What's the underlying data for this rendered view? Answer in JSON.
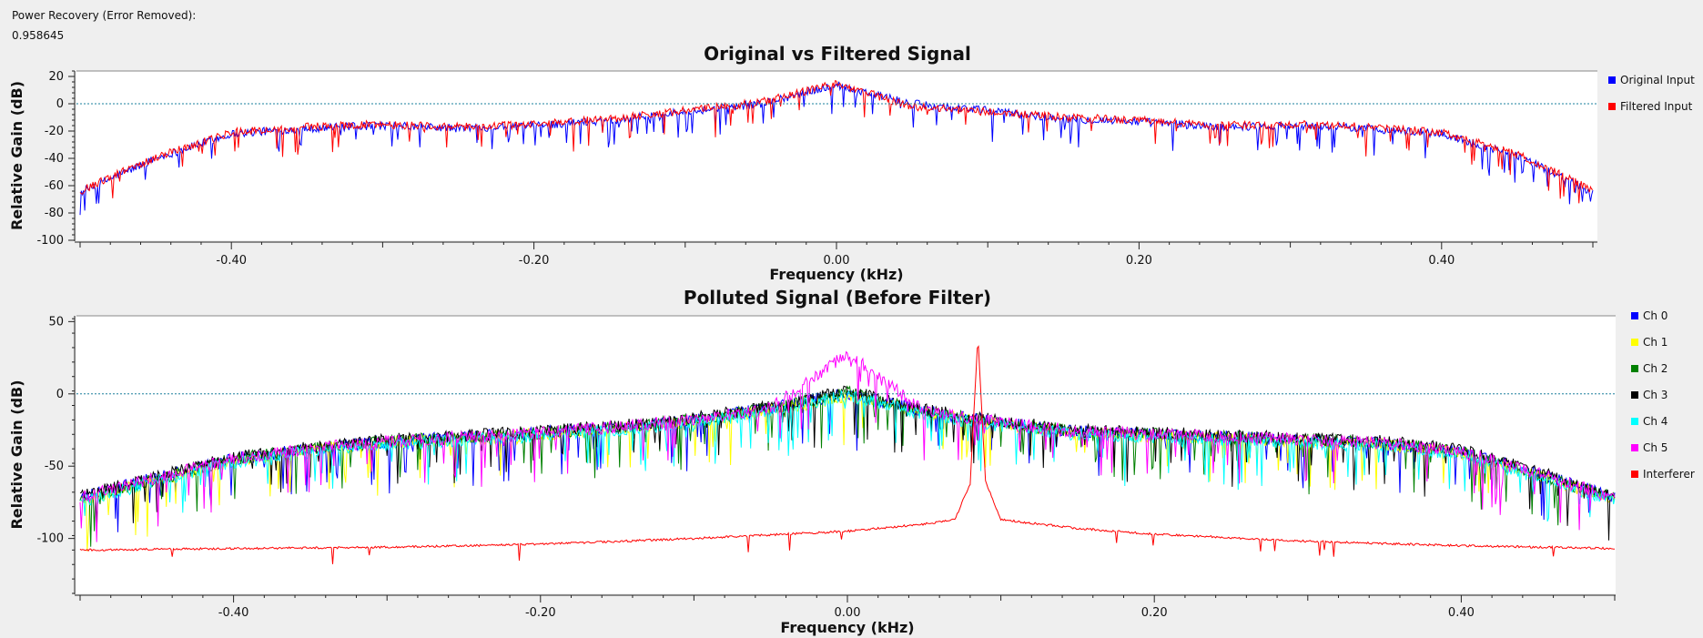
{
  "readout": {
    "label": "Power Recovery (Error Removed):",
    "value": "0.958645"
  },
  "chart_data": [
    {
      "type": "line",
      "title": "Original vs Filtered Signal",
      "xlabel": "Frequency (kHz)",
      "ylabel": "Relative Gain (dB)",
      "xlim": [
        -0.5,
        0.5
      ],
      "ylim": [
        -100,
        24
      ],
      "x_ticks": [
        -0.4,
        -0.2,
        0.0,
        0.2,
        0.4
      ],
      "x_tick_labels": [
        "-0.40",
        "-0.20",
        "0.00",
        "0.20",
        "0.40"
      ],
      "y_ticks": [
        20,
        0,
        -20,
        -40,
        -60,
        -80,
        -100
      ],
      "y_tick_labels": [
        "20",
        "0",
        "-20",
        "-40",
        "-60",
        "-80",
        "-100"
      ],
      "reference_line": 0,
      "legend": [
        {
          "name": "Original Input",
          "color": "#0000ff"
        },
        {
          "name": "Filtered Input",
          "color": "#ff0000"
        }
      ],
      "series": [
        {
          "name": "Original Input",
          "color": "#0000ff",
          "x": [
            -0.5,
            -0.45,
            -0.4,
            -0.35,
            -0.3,
            -0.25,
            -0.2,
            -0.15,
            -0.1,
            -0.05,
            0.0,
            0.05,
            0.1,
            0.15,
            0.2,
            0.25,
            0.3,
            0.35,
            0.4,
            0.45,
            0.5
          ],
          "values": [
            -65,
            -40,
            -22,
            -18,
            -16,
            -18,
            -16,
            -12,
            -6,
            0,
            14,
            0,
            -5,
            -11,
            -13,
            -17,
            -16,
            -18,
            -22,
            -38,
            -65
          ]
        },
        {
          "name": "Filtered Input",
          "color": "#ff0000",
          "x": [
            -0.5,
            -0.45,
            -0.4,
            -0.35,
            -0.3,
            -0.25,
            -0.2,
            -0.15,
            -0.1,
            -0.05,
            0.0,
            0.05,
            0.1,
            0.15,
            0.2,
            0.25,
            0.3,
            0.35,
            0.4,
            0.45,
            0.5
          ],
          "values": [
            -64,
            -39,
            -21,
            -17,
            -15,
            -17,
            -15,
            -11,
            -5,
            1,
            15,
            -2,
            -6,
            -10,
            -12,
            -16,
            -15,
            -17,
            -21,
            -37,
            -63
          ]
        }
      ]
    },
    {
      "type": "line",
      "title": "Polluted Signal (Before Filter)",
      "xlabel": "Frequency (kHz)",
      "ylabel": "Relative Gain (dB)",
      "xlim": [
        -0.5,
        0.5
      ],
      "ylim": [
        -138,
        54
      ],
      "x_ticks": [
        -0.4,
        -0.2,
        0.0,
        0.2,
        0.4
      ],
      "x_tick_labels": [
        "-0.40",
        "-0.20",
        "0.00",
        "0.20",
        "0.40"
      ],
      "y_ticks": [
        50,
        0,
        -50,
        -100
      ],
      "y_tick_labels": [
        "50",
        "0",
        "-50",
        "-100"
      ],
      "reference_line": 0,
      "legend": [
        {
          "name": "Ch 0",
          "color": "#0000ff"
        },
        {
          "name": "Ch 1",
          "color": "#ffff00"
        },
        {
          "name": "Ch 2",
          "color": "#008000"
        },
        {
          "name": "Ch 3",
          "color": "#000000"
        },
        {
          "name": "Ch 4",
          "color": "#00ffff"
        },
        {
          "name": "Ch 5",
          "color": "#ff00ff"
        },
        {
          "name": "Interferer",
          "color": "#ff0000"
        }
      ],
      "series": [
        {
          "name": "Ch 0",
          "color": "#0000ff",
          "x": [
            -0.5,
            -0.45,
            -0.4,
            -0.35,
            -0.3,
            -0.25,
            -0.2,
            -0.15,
            -0.1,
            -0.05,
            0.0,
            0.05,
            0.1,
            0.15,
            0.2,
            0.25,
            0.3,
            0.35,
            0.4,
            0.45,
            0.5
          ],
          "values": [
            -72,
            -58,
            -45,
            -38,
            -33,
            -30,
            -27,
            -23,
            -18,
            -10,
            0,
            -12,
            -20,
            -26,
            -28,
            -30,
            -32,
            -34,
            -40,
            -55,
            -72
          ]
        },
        {
          "name": "Ch 1",
          "color": "#ffff00",
          "x": [
            -0.5,
            -0.45,
            -0.4,
            -0.35,
            -0.3,
            -0.25,
            -0.2,
            -0.15,
            -0.1,
            -0.05,
            0.0,
            0.05,
            0.1,
            0.15,
            0.2,
            0.25,
            0.3,
            0.35,
            0.4,
            0.45,
            0.5
          ],
          "values": [
            -74,
            -60,
            -46,
            -39,
            -34,
            -31,
            -28,
            -24,
            -19,
            -11,
            -2,
            -13,
            -21,
            -27,
            -29,
            -31,
            -33,
            -35,
            -41,
            -57,
            -73
          ]
        },
        {
          "name": "Ch 2",
          "color": "#008000",
          "x": [
            -0.5,
            -0.45,
            -0.4,
            -0.35,
            -0.3,
            -0.25,
            -0.2,
            -0.15,
            -0.1,
            -0.05,
            0.0,
            0.05,
            0.1,
            0.15,
            0.2,
            0.25,
            0.3,
            0.35,
            0.4,
            0.45,
            0.5
          ],
          "values": [
            -73,
            -59,
            -45,
            -38,
            -33,
            -30,
            -27,
            -23,
            -18,
            -10,
            1,
            -12,
            -20,
            -26,
            -28,
            -30,
            -32,
            -34,
            -40,
            -56,
            -72
          ]
        },
        {
          "name": "Ch 3",
          "color": "#000000",
          "x": [
            -0.5,
            -0.45,
            -0.4,
            -0.35,
            -0.3,
            -0.25,
            -0.2,
            -0.15,
            -0.1,
            -0.05,
            0.0,
            0.05,
            0.1,
            0.15,
            0.2,
            0.25,
            0.3,
            0.35,
            0.4,
            0.45,
            0.5
          ],
          "values": [
            -71,
            -57,
            -44,
            -37,
            -32,
            -29,
            -26,
            -22,
            -17,
            -9,
            2,
            -11,
            -19,
            -25,
            -27,
            -29,
            -31,
            -33,
            -39,
            -54,
            -71
          ]
        },
        {
          "name": "Ch 4",
          "color": "#00ffff",
          "x": [
            -0.5,
            -0.45,
            -0.4,
            -0.35,
            -0.3,
            -0.25,
            -0.2,
            -0.15,
            -0.1,
            -0.05,
            0.0,
            0.05,
            0.1,
            0.15,
            0.2,
            0.25,
            0.3,
            0.35,
            0.4,
            0.45,
            0.5
          ],
          "values": [
            -75,
            -60,
            -47,
            -40,
            -35,
            -32,
            -29,
            -25,
            -20,
            -12,
            -1,
            -14,
            -22,
            -28,
            -30,
            -32,
            -34,
            -36,
            -42,
            -58,
            -74
          ]
        },
        {
          "name": "Ch 5",
          "color": "#ff00ff",
          "x": [
            -0.5,
            -0.45,
            -0.4,
            -0.35,
            -0.3,
            -0.25,
            -0.2,
            -0.15,
            -0.1,
            -0.05,
            0.0,
            0.05,
            0.1,
            0.15,
            0.2,
            0.25,
            0.3,
            0.35,
            0.4,
            0.45,
            0.5
          ],
          "values": [
            -72,
            -58,
            -45,
            -38,
            -33,
            -30,
            -27,
            -23,
            -18,
            -10,
            28,
            -12,
            -20,
            -26,
            -28,
            -30,
            -32,
            -34,
            -40,
            -55,
            -72
          ]
        },
        {
          "name": "Interferer",
          "color": "#ff0000",
          "x": [
            -0.5,
            -0.4,
            -0.3,
            -0.2,
            -0.1,
            0.0,
            0.05,
            0.07,
            0.08,
            0.085,
            0.09,
            0.1,
            0.15,
            0.2,
            0.3,
            0.4,
            0.5
          ],
          "values": [
            -108,
            -107,
            -106,
            -104,
            -100,
            -95,
            -90,
            -87,
            -62,
            40,
            -60,
            -87,
            -93,
            -97,
            -102,
            -105,
            -107
          ]
        }
      ]
    }
  ]
}
